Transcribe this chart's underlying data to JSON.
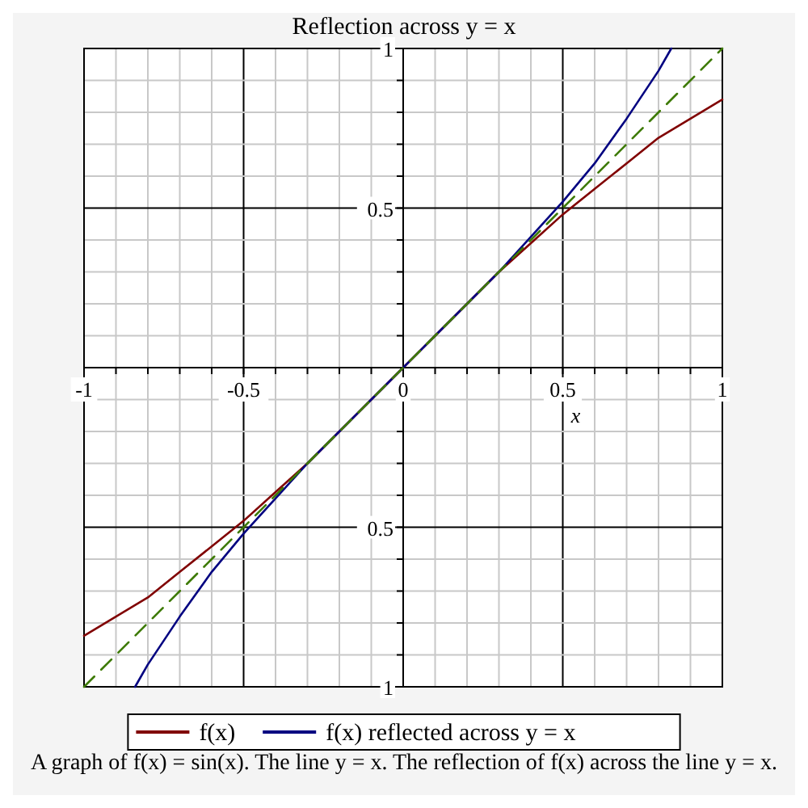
{
  "chart_data": {
    "type": "line",
    "title": "Reflection across y = x",
    "xlabel": "x",
    "xlim": [
      -1,
      1
    ],
    "ylim": [
      -1,
      1
    ],
    "xticks": [
      -1,
      {
        "value": -0.9,
        "label": null
      },
      {
        "value": -0.8,
        "label": null
      },
      {
        "value": -0.7,
        "label": null
      },
      {
        "value": -0.6,
        "label": null
      },
      -0.5,
      {
        "value": -0.4,
        "label": null
      },
      {
        "value": -0.3,
        "label": null
      },
      {
        "value": -0.2,
        "label": null
      },
      {
        "value": -0.1,
        "label": null
      },
      0,
      {
        "value": 0.1,
        "label": null
      },
      {
        "value": 0.2,
        "label": null
      },
      {
        "value": 0.3,
        "label": null
      },
      {
        "value": 0.4,
        "label": null
      },
      0.5,
      {
        "value": 0.6,
        "label": null
      },
      {
        "value": 0.7,
        "label": null
      },
      {
        "value": 0.8,
        "label": null
      },
      {
        "value": 0.9,
        "label": null
      },
      1
    ],
    "yticks": [
      {
        "value": -1,
        "label": "1"
      },
      {
        "value": -0.9,
        "label": null
      },
      {
        "value": -0.8,
        "label": null
      },
      {
        "value": -0.7,
        "label": null
      },
      {
        "value": -0.6,
        "label": null
      },
      {
        "value": -0.5,
        "label": "0.5"
      },
      {
        "value": -0.4,
        "label": null
      },
      {
        "value": -0.3,
        "label": null
      },
      {
        "value": -0.2,
        "label": null
      },
      {
        "value": -0.1,
        "label": null
      },
      {
        "value": 0,
        "label": null
      },
      {
        "value": 0.1,
        "label": null
      },
      {
        "value": 0.2,
        "label": null
      },
      {
        "value": 0.3,
        "label": null
      },
      {
        "value": 0.4,
        "label": null
      },
      0.5,
      {
        "value": 0.6,
        "label": null
      },
      {
        "value": 0.7,
        "label": null
      },
      {
        "value": 0.8,
        "label": null
      },
      {
        "value": 0.9,
        "label": null
      },
      1
    ],
    "grid": true,
    "legend": "bottom",
    "marker": "none",
    "series": [
      {
        "name": "f(x)",
        "color": "#800000",
        "line_style": "solid",
        "x": [
          -1,
          -0.9,
          -0.8,
          -0.7,
          -0.6,
          -0.5,
          -0.4,
          -0.3,
          -0.2,
          -0.1,
          0,
          0.1,
          0.2,
          0.3,
          0.4,
          0.5,
          0.6,
          0.7,
          0.8,
          0.9,
          1
        ],
        "values": [
          -0.84,
          -0.78,
          -0.72,
          -0.64,
          -0.56,
          -0.48,
          -0.39,
          -0.3,
          -0.2,
          -0.1,
          0,
          0.1,
          0.2,
          0.3,
          0.39,
          0.48,
          0.56,
          0.64,
          0.72,
          0.78,
          0.84
        ]
      },
      {
        "name": "f(x) reflected across y = x",
        "color": "#000080",
        "line_style": "solid",
        "x": [
          -0.84,
          -0.8,
          -0.7,
          -0.6,
          -0.5,
          -0.4,
          -0.3,
          -0.2,
          -0.1,
          0,
          0.1,
          0.2,
          0.3,
          0.4,
          0.5,
          0.6,
          0.7,
          0.8,
          0.84
        ],
        "values": [
          -1,
          -0.93,
          -0.78,
          -0.64,
          -0.52,
          -0.41,
          -0.3,
          -0.2,
          -0.1,
          0,
          0.1,
          0.2,
          0.3,
          0.41,
          0.52,
          0.64,
          0.78,
          0.93,
          1
        ]
      },
      {
        "color": "#3d7a00",
        "line_style": "dashed",
        "x": [
          -1,
          1
        ],
        "values": [
          -1,
          1
        ]
      }
    ],
    "annotations": [
      "A graph of f(x) = sin(x). The line y = x. The reflection of f(x) across the line y = x."
    ]
  }
}
